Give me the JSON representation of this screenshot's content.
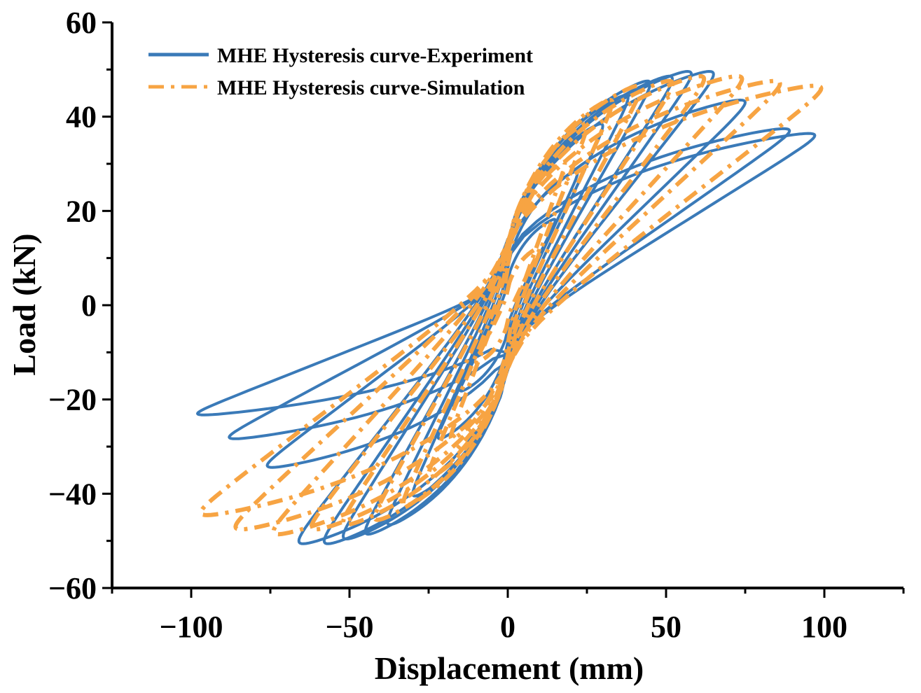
{
  "chart_data": {
    "type": "line",
    "title": "",
    "xlabel": "Displacement (mm)",
    "ylabel": "Load (kN)",
    "xlim": [
      -125,
      125
    ],
    "ylim": [
      -60,
      60
    ],
    "grid": false,
    "legend_position": "top-left",
    "x_ticks": [
      -100,
      -50,
      0,
      50,
      100
    ],
    "x_tick_labels": [
      "−100",
      "−50",
      "0",
      "50",
      "100"
    ],
    "y_ticks": [
      -60,
      -40,
      -20,
      0,
      20,
      40,
      60
    ],
    "y_tick_labels": [
      "−60",
      "−40",
      "−20",
      "0",
      "20",
      "40",
      "60"
    ],
    "series": [
      {
        "name": "MHE Hysteresis curve-Experiment",
        "color": "#3a7ab8",
        "style": "solid",
        "cycles": [
          {
            "amp_pos": 15,
            "amp_neg": 15,
            "peak_pos": 18,
            "peak_neg": -18
          },
          {
            "amp_pos": 22,
            "amp_neg": 22,
            "peak_pos": 28,
            "peak_neg": -28
          },
          {
            "amp_pos": 30,
            "amp_neg": 30,
            "peak_pos": 38,
            "peak_neg": -40
          },
          {
            "amp_pos": 38,
            "amp_neg": 38,
            "peak_pos": 44,
            "peak_neg": -46
          },
          {
            "amp_pos": 45,
            "amp_neg": 45,
            "peak_pos": 47,
            "peak_neg": -48
          },
          {
            "amp_pos": 52,
            "amp_neg": 52,
            "peak_pos": 48,
            "peak_neg": -49
          },
          {
            "amp_pos": 58,
            "amp_neg": 58,
            "peak_pos": 49,
            "peak_neg": -50
          },
          {
            "amp_pos": 65,
            "amp_neg": 66,
            "peak_pos": 49,
            "peak_neg": -50
          },
          {
            "amp_pos": 75,
            "amp_neg": 76,
            "peak_pos": 43,
            "peak_neg": -34
          },
          {
            "amp_pos": 89,
            "amp_neg": 88,
            "peak_pos": 37,
            "peak_neg": -28
          },
          {
            "amp_pos": 97,
            "amp_neg": 98,
            "peak_pos": 36,
            "peak_neg": -23
          }
        ]
      },
      {
        "name": "MHE Hysteresis curve-Simulation",
        "color": "#f7a443",
        "style": "dashdot",
        "cycles": [
          {
            "amp_pos": 10,
            "amp_neg": 10,
            "peak_pos": 12,
            "peak_neg": -12
          },
          {
            "amp_pos": 18,
            "amp_neg": 18,
            "peak_pos": 30,
            "peak_neg": -28
          },
          {
            "amp_pos": 25,
            "amp_neg": 25,
            "peak_pos": 38,
            "peak_neg": -36
          },
          {
            "amp_pos": 33,
            "amp_neg": 33,
            "peak_pos": 43,
            "peak_neg": -42
          },
          {
            "amp_pos": 42,
            "amp_neg": 42,
            "peak_pos": 46,
            "peak_neg": -45
          },
          {
            "amp_pos": 52,
            "amp_neg": 52,
            "peak_pos": 47,
            "peak_neg": -46
          },
          {
            "amp_pos": 62,
            "amp_neg": 62,
            "peak_pos": 48,
            "peak_neg": -47
          },
          {
            "amp_pos": 74,
            "amp_neg": 74,
            "peak_pos": 48,
            "peak_neg": -48
          },
          {
            "amp_pos": 86,
            "amp_neg": 86,
            "peak_pos": 47,
            "peak_neg": -47
          },
          {
            "amp_pos": 99,
            "amp_neg": 97,
            "peak_pos": 46,
            "peak_neg": -44
          }
        ]
      }
    ]
  }
}
